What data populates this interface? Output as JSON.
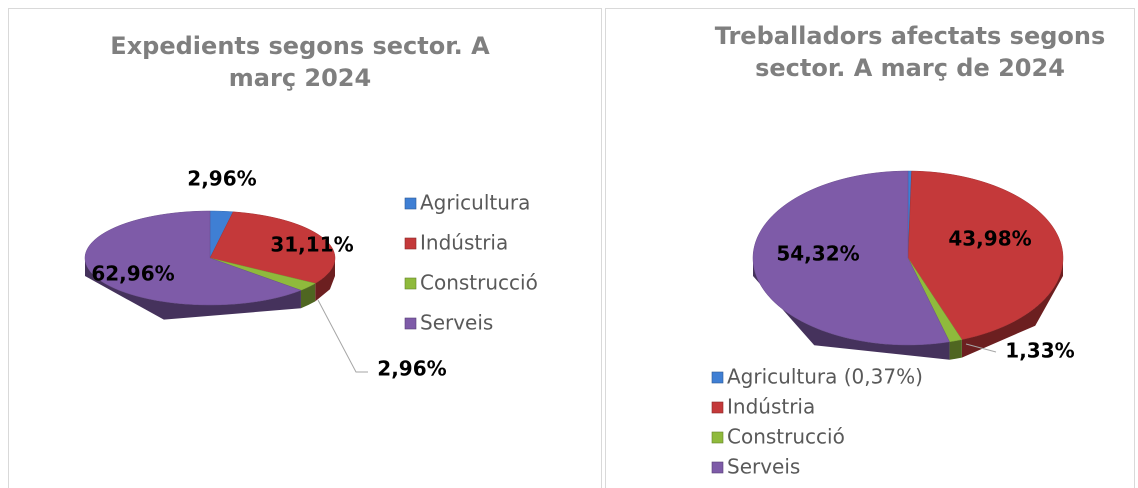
{
  "chart_data": [
    {
      "type": "pie3d",
      "title": "Expedients segons sector. A març 2024",
      "categories": [
        "Agricultura",
        "Indústria",
        "Construcció",
        "Serveis"
      ],
      "values": [
        2.96,
        31.11,
        2.96,
        62.96
      ],
      "value_labels": [
        "2,96%",
        "31,11%",
        "2,96%",
        "62,96%"
      ],
      "colors": [
        "#3f7fd4",
        "#c4393a",
        "#8fba3c",
        "#7e5ba8"
      ],
      "legend": "right"
    },
    {
      "type": "pie3d",
      "title": "Treballadors afectats segons sector. A març de 2024",
      "categories": [
        "Agricultura (0,37%)",
        "Indústria",
        "Construcció",
        "Serveis"
      ],
      "values": [
        0.37,
        43.98,
        1.33,
        54.32
      ],
      "value_labels": [
        null,
        "43,98%",
        "1,33%",
        "54,32%"
      ],
      "colors": [
        "#3f7fd4",
        "#c4393a",
        "#8fba3c",
        "#7e5ba8"
      ],
      "legend": "bottom"
    }
  ]
}
